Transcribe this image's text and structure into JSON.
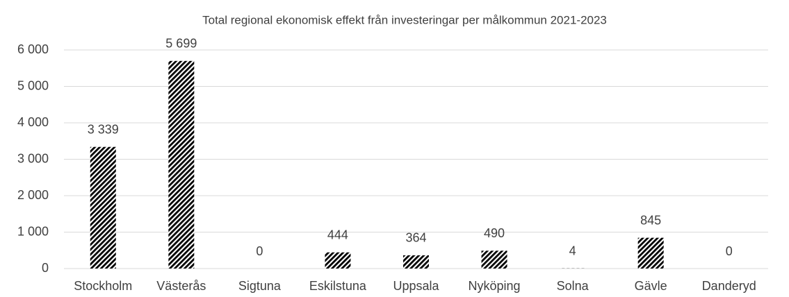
{
  "chart_data": {
    "type": "bar",
    "title": "Total regional ekonomisk effekt från investeringar per målkommun 2021-2023",
    "categories": [
      "Stockholm",
      "Västerås",
      "Sigtuna",
      "Eskilstuna",
      "Uppsala",
      "Nyköping",
      "Solna",
      "Gävle",
      "Danderyd"
    ],
    "values": [
      3339,
      5699,
      0,
      444,
      364,
      490,
      4,
      845,
      0
    ],
    "value_labels": [
      "3 339",
      "5 699",
      "0",
      "444",
      "364",
      "490",
      "4",
      "845",
      "0"
    ],
    "color": "#000000",
    "ylim": [
      0,
      6000
    ],
    "yticks": [
      0,
      {
        "value": 1000,
        "label": "1 000"
      },
      {
        "value": 2000,
        "label": "2 000"
      },
      {
        "value": 3000,
        "label": "3 000"
      },
      {
        "value": 4000,
        "label": "4 000"
      },
      {
        "value": 5000,
        "label": "5 000"
      },
      {
        "value": 6000,
        "label": "6 000"
      }
    ],
    "grid": true
  }
}
